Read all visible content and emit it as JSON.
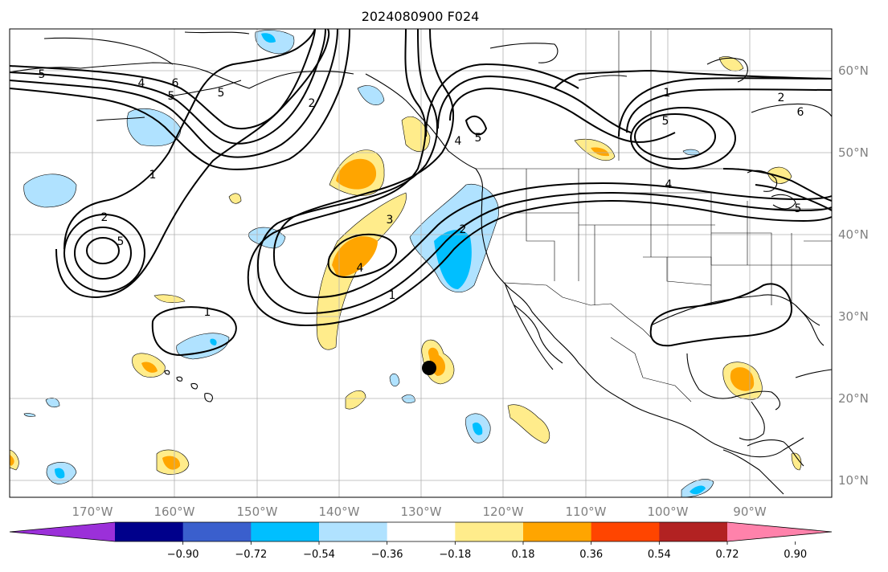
{
  "title": "2024080900 F024",
  "map": {
    "lon_labels": [
      "170°W",
      "160°W",
      "150°W",
      "140°W",
      "130°W",
      "120°W",
      "110°W",
      "100°W",
      "90°W"
    ],
    "lat_labels": [
      "60°N",
      "50°N",
      "40°N",
      "30°N",
      "20°N",
      "10°N"
    ],
    "contour_labels": [
      "5",
      "4",
      "6",
      "5",
      "5",
      "2",
      "1",
      "2",
      "5",
      "3",
      "4",
      "1",
      "2",
      "1",
      "5",
      "4",
      "1",
      "2",
      "6",
      "5",
      "4",
      "5"
    ],
    "marker": {
      "lon": -129.5,
      "lat": 23.5
    },
    "colors": {
      "contour": "#000000",
      "marker": "#000000",
      "grid": "#b0b0b0"
    }
  },
  "colorbar": {
    "ticks": [
      "−0.90",
      "−0.72",
      "−0.54",
      "−0.36",
      "−0.18",
      "0.18",
      "0.36",
      "0.54",
      "0.72",
      "0.90"
    ],
    "colors": [
      "#9b30d9",
      "#00008b",
      "#3a5fcd",
      "#00bfff",
      "#b0e2ff",
      "#ffffff",
      "#ffec8b",
      "#ffa500",
      "#ff4500",
      "#b22222",
      "#ff82ab"
    ]
  }
}
